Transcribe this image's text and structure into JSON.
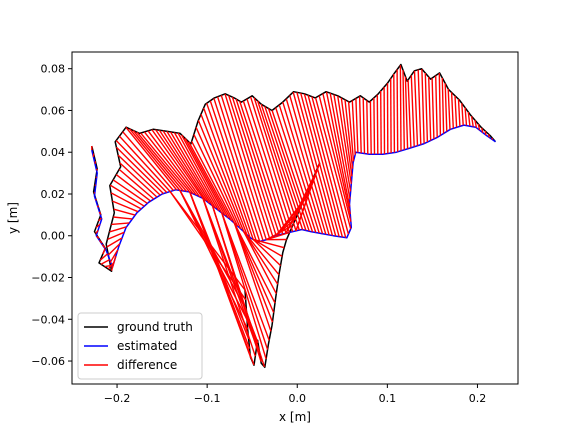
{
  "chart_data": {
    "type": "line",
    "title": "",
    "xlabel": "x [m]",
    "ylabel": "y [m]",
    "xlim": [
      -0.25,
      0.245
    ],
    "ylim": [
      -0.071,
      0.088
    ],
    "xticks": [
      -0.2,
      -0.1,
      0.0,
      0.1,
      0.2
    ],
    "yticks": [
      -0.06,
      -0.04,
      -0.02,
      0.0,
      0.02,
      0.04,
      0.06,
      0.08
    ],
    "xtick_labels": [
      "−0.2",
      "−0.1",
      "0.0",
      "0.1",
      "0.2"
    ],
    "ytick_labels": [
      "−0.06",
      "−0.04",
      "−0.02",
      "0.00",
      "0.02",
      "0.04",
      "0.06",
      "0.08"
    ],
    "grid": false,
    "legend_position": "lower-left",
    "series": [
      {
        "name": "ground truth",
        "color": "#000000"
      },
      {
        "name": "estimated",
        "color": "#0000ff"
      },
      {
        "name": "difference",
        "color": "#ff0000"
      }
    ],
    "ground_truth_path": [
      [
        -0.228,
        0.043
      ],
      [
        -0.222,
        0.032
      ],
      [
        -0.226,
        0.021
      ],
      [
        -0.218,
        0.01
      ],
      [
        -0.225,
        0.002
      ],
      [
        -0.213,
        -0.006
      ],
      [
        -0.22,
        -0.013
      ],
      [
        -0.206,
        -0.017
      ],
      [
        -0.212,
        -0.004
      ],
      [
        -0.203,
        0.011
      ],
      [
        -0.208,
        0.024
      ],
      [
        -0.196,
        0.033
      ],
      [
        -0.202,
        0.045
      ],
      [
        -0.19,
        0.052
      ],
      [
        -0.175,
        0.049
      ],
      [
        -0.16,
        0.051
      ],
      [
        -0.145,
        0.05
      ],
      [
        -0.13,
        0.049
      ],
      [
        -0.118,
        0.044
      ],
      [
        -0.11,
        0.055
      ],
      [
        -0.102,
        0.063
      ],
      [
        -0.092,
        0.066
      ],
      [
        -0.08,
        0.068
      ],
      [
        -0.07,
        0.066
      ],
      [
        -0.062,
        0.064
      ],
      [
        -0.05,
        0.067
      ],
      [
        -0.04,
        0.063
      ],
      [
        -0.028,
        0.06
      ],
      [
        -0.016,
        0.064
      ],
      [
        -0.004,
        0.069
      ],
      [
        0.008,
        0.068
      ],
      [
        0.02,
        0.066
      ],
      [
        0.032,
        0.069
      ],
      [
        0.045,
        0.067
      ],
      [
        0.058,
        0.064
      ],
      [
        0.07,
        0.067
      ],
      [
        0.08,
        0.064
      ],
      [
        0.09,
        0.068
      ],
      [
        0.1,
        0.073
      ],
      [
        0.108,
        0.078
      ],
      [
        0.115,
        0.082
      ],
      [
        0.122,
        0.074
      ],
      [
        0.13,
        0.079
      ],
      [
        0.138,
        0.08
      ],
      [
        0.148,
        0.075
      ],
      [
        0.158,
        0.078
      ],
      [
        0.168,
        0.07
      ],
      [
        0.18,
        0.065
      ],
      [
        0.192,
        0.058
      ],
      [
        0.204,
        0.052
      ],
      [
        0.214,
        0.048
      ],
      [
        0.22,
        0.045
      ]
    ],
    "estimated_path": [
      [
        -0.228,
        0.041
      ],
      [
        -0.222,
        0.03
      ],
      [
        -0.225,
        0.019
      ],
      [
        -0.217,
        0.008
      ],
      [
        -0.223,
        0.0
      ],
      [
        -0.212,
        -0.007
      ],
      [
        -0.205,
        -0.015
      ],
      [
        -0.198,
        -0.005
      ],
      [
        -0.19,
        0.004
      ],
      [
        -0.178,
        0.011
      ],
      [
        -0.165,
        0.016
      ],
      [
        -0.15,
        0.02
      ],
      [
        -0.135,
        0.022
      ],
      [
        -0.12,
        0.021
      ],
      [
        -0.105,
        0.018
      ],
      [
        -0.09,
        0.013
      ],
      [
        -0.075,
        0.008
      ],
      [
        -0.062,
        0.003
      ],
      [
        -0.052,
        -0.001
      ],
      [
        -0.044,
        -0.003
      ],
      [
        -0.035,
        -0.002
      ],
      [
        -0.025,
        0.0
      ],
      [
        -0.015,
        0.001
      ],
      [
        -0.005,
        0.002
      ],
      [
        0.005,
        0.003
      ],
      [
        0.015,
        0.002
      ],
      [
        0.028,
        0.001
      ],
      [
        0.04,
        0.0
      ],
      [
        0.055,
        -0.001
      ],
      [
        0.06,
        0.004
      ],
      [
        0.058,
        0.015
      ],
      [
        0.06,
        0.025
      ],
      [
        0.062,
        0.035
      ],
      [
        0.065,
        0.04
      ],
      [
        0.08,
        0.039
      ],
      [
        0.095,
        0.039
      ],
      [
        0.11,
        0.04
      ],
      [
        0.125,
        0.042
      ],
      [
        0.14,
        0.044
      ],
      [
        0.155,
        0.047
      ],
      [
        0.17,
        0.051
      ],
      [
        0.185,
        0.053
      ],
      [
        0.198,
        0.052
      ],
      [
        0.21,
        0.048
      ],
      [
        0.22,
        0.045
      ]
    ],
    "branch_path": [
      [
        -0.058,
        -0.026
      ],
      [
        -0.055,
        -0.045
      ],
      [
        -0.052,
        -0.058
      ],
      [
        -0.048,
        -0.062
      ],
      [
        -0.044,
        -0.05
      ],
      [
        -0.04,
        -0.061
      ],
      [
        -0.036,
        -0.063
      ],
      [
        -0.032,
        -0.052
      ],
      [
        -0.028,
        -0.043
      ],
      [
        -0.024,
        -0.03
      ],
      [
        -0.02,
        -0.018
      ],
      [
        -0.016,
        -0.008
      ],
      [
        -0.012,
        -0.002
      ],
      [
        -0.006,
        0.004
      ],
      [
        0.0,
        0.01
      ],
      [
        0.006,
        0.016
      ],
      [
        0.012,
        0.02
      ],
      [
        0.018,
        0.028
      ],
      [
        0.022,
        0.032
      ],
      [
        0.025,
        0.035
      ]
    ]
  }
}
